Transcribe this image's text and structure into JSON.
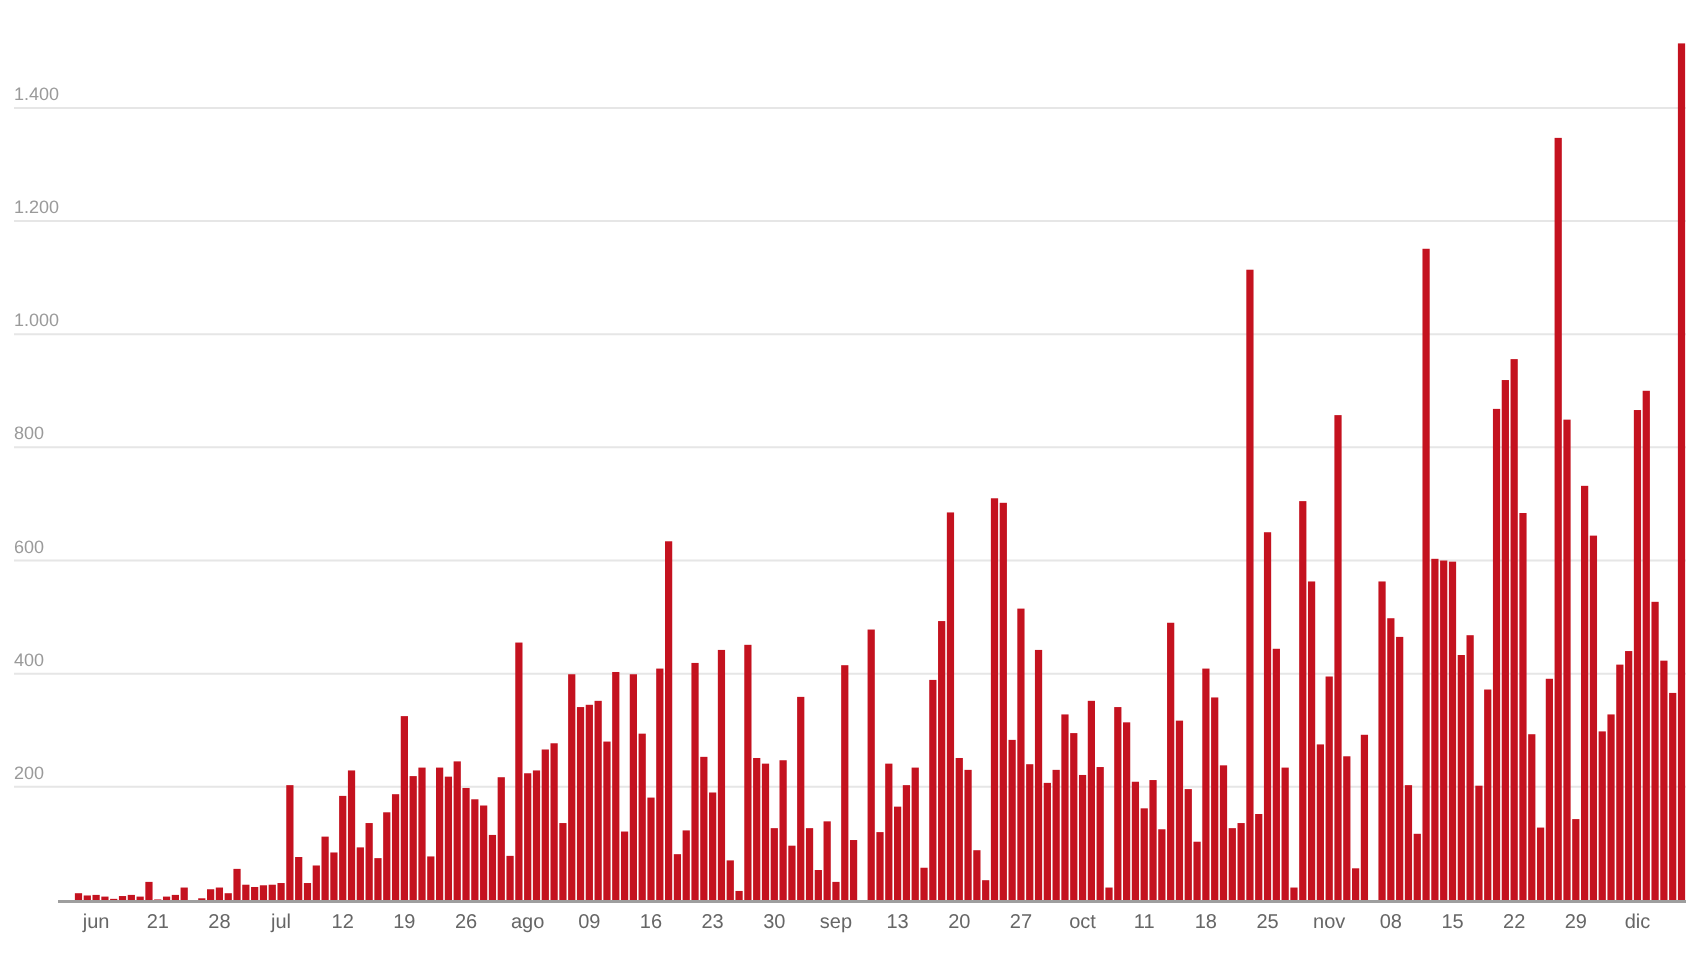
{
  "chart_data": {
    "type": "bar",
    "categories": [
      null,
      null,
      "jun",
      null,
      null,
      null,
      null,
      null,
      null,
      "21",
      null,
      null,
      null,
      null,
      null,
      null,
      "28",
      null,
      null,
      null,
      null,
      null,
      null,
      "jul",
      null,
      null,
      null,
      null,
      null,
      null,
      "12",
      null,
      null,
      null,
      null,
      null,
      null,
      "19",
      null,
      null,
      null,
      null,
      null,
      null,
      "26",
      null,
      null,
      null,
      null,
      null,
      null,
      "ago",
      null,
      null,
      null,
      null,
      null,
      null,
      "09",
      null,
      null,
      null,
      null,
      null,
      null,
      "16",
      null,
      null,
      null,
      null,
      null,
      null,
      "23",
      null,
      null,
      null,
      null,
      null,
      null,
      "30",
      null,
      null,
      null,
      null,
      null,
      null,
      "sep",
      null,
      null,
      null,
      null,
      null,
      null,
      "13",
      null,
      null,
      null,
      null,
      null,
      null,
      "20",
      null,
      null,
      null,
      null,
      null,
      null,
      "27",
      null,
      null,
      null,
      null,
      null,
      null,
      "oct",
      null,
      null,
      null,
      null,
      null,
      null,
      "11",
      null,
      null,
      null,
      null,
      null,
      null,
      "18",
      null,
      null,
      null,
      null,
      null,
      null,
      "25",
      null,
      null,
      null,
      null,
      null,
      null,
      "nov",
      null,
      null,
      null,
      null,
      null,
      null,
      "08",
      null,
      null,
      null,
      null,
      null,
      null,
      "15",
      null,
      null,
      null,
      null,
      null,
      null,
      "22",
      null,
      null,
      null,
      null,
      null,
      null,
      "29",
      null,
      null,
      null,
      null,
      null,
      null,
      "dic",
      null,
      null,
      null,
      null,
      null
    ],
    "values": [
      12,
      8,
      9,
      6,
      2,
      7,
      9,
      6,
      32,
      1,
      6,
      9,
      22,
      0,
      3,
      19,
      22,
      12,
      55,
      27,
      23,
      26,
      27,
      30,
      203,
      76,
      30,
      61,
      112,
      84,
      184,
      229,
      93,
      136,
      74,
      155,
      187,
      325,
      219,
      234,
      77,
      234,
      218,
      245,
      198,
      178,
      167,
      115,
      217,
      78,
      455,
      224,
      229,
      266,
      277,
      136,
      399,
      341,
      345,
      352,
      280,
      403,
      121,
      399,
      294,
      181,
      409,
      634,
      81,
      123,
      419,
      253,
      190,
      442,
      70,
      16,
      451,
      251,
      241,
      127,
      247,
      96,
      359,
      127,
      53,
      139,
      32,
      415,
      106,
      0,
      478,
      120,
      241,
      165,
      203,
      234,
      57,
      389,
      493,
      685,
      251,
      230,
      88,
      35,
      710,
      702,
      283,
      515,
      240,
      442,
      207,
      230,
      328,
      295,
      221,
      352,
      235,
      22,
      341,
      314,
      209,
      162,
      212,
      125,
      490,
      317,
      196,
      103,
      409,
      358,
      238,
      127,
      136,
      1114,
      152,
      650,
      444,
      234,
      22,
      705,
      563,
      275,
      395,
      857,
      254,
      56,
      292,
      0,
      563,
      498,
      465,
      203,
      117,
      1151,
      603,
      600,
      598,
      433,
      468,
      202,
      372,
      868,
      919,
      956,
      684,
      293,
      128,
      391,
      1347,
      849,
      143,
      732,
      644,
      298,
      328,
      416,
      440,
      866,
      900,
      527,
      423,
      366,
      1514
    ],
    "color": "#c4121f",
    "ylim": [
      0,
      1520
    ],
    "yticks": [
      200,
      400,
      600,
      800,
      {
        "value": 1000,
        "label": "1.000"
      },
      {
        "value": 1200,
        "label": "1.200"
      },
      {
        "value": 1400,
        "label": "1.400"
      }
    ],
    "grid": "y"
  }
}
